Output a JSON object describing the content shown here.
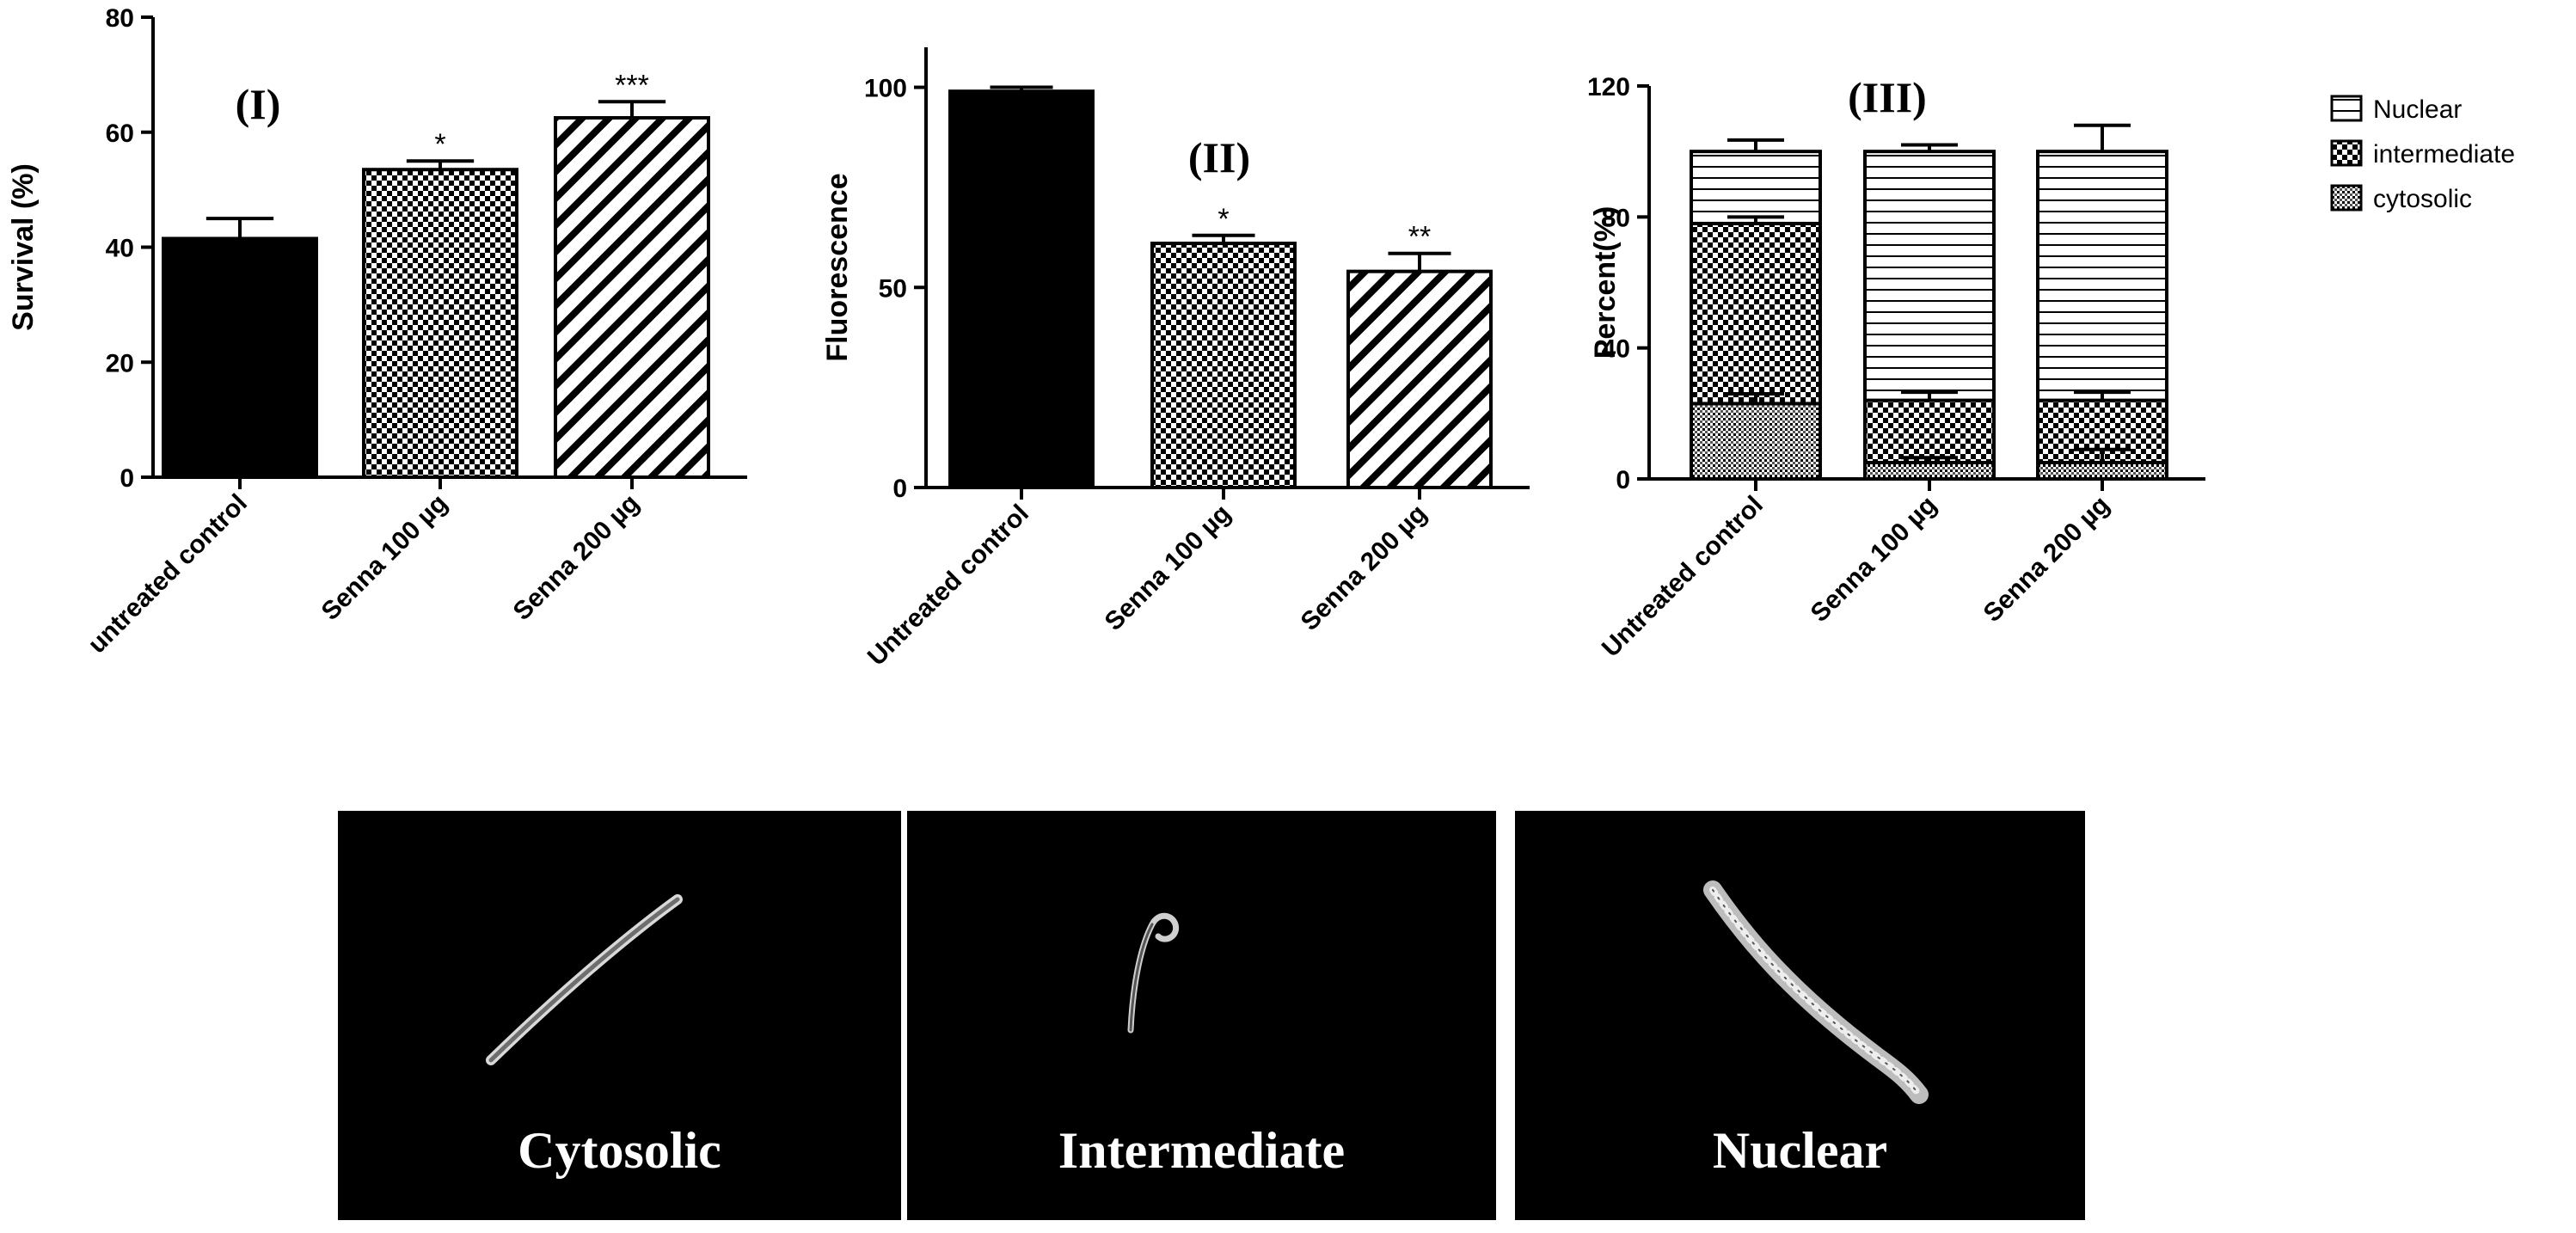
{
  "chart_data": [
    {
      "type": "bar",
      "panel_label": "(I)",
      "ylabel": "Survival (%)",
      "ylim": [
        0,
        80
      ],
      "yticks": [
        "0",
        "20",
        "40",
        "60",
        "80"
      ],
      "categories": [
        "untreated control",
        "Senna 100 µg",
        "Senna 200 µg"
      ],
      "values": [
        41.5,
        53.5,
        62.5
      ],
      "errors": [
        3.5,
        1.5,
        2.8
      ],
      "significance": [
        "",
        "*",
        "***"
      ],
      "patterns": [
        "solid",
        "checker",
        "diagonal"
      ]
    },
    {
      "type": "bar",
      "panel_label": "(II)",
      "ylabel": "Fluorescence",
      "ylim": [
        0,
        110
      ],
      "yticks": [
        "0",
        "50",
        "100"
      ],
      "categories": [
        "Untreated control",
        "Senna 100 µg",
        "Senna 200 µg"
      ],
      "values": [
        99,
        61,
        54
      ],
      "errors": [
        1,
        2,
        4.5
      ],
      "significance": [
        "",
        "*",
        "**"
      ],
      "patterns": [
        "solid",
        "checker",
        "diagonal"
      ]
    },
    {
      "type": "bar",
      "stacked": true,
      "panel_label": "(III)",
      "ylabel": "Percent(%)",
      "ylim": [
        0,
        120
      ],
      "yticks": [
        "0",
        "40",
        "80",
        "120"
      ],
      "categories": [
        "Untreated control",
        "Senna 100 µg",
        "Senna 200 µg"
      ],
      "series": [
        {
          "name": "cytosolic",
          "values": [
            23,
            5,
            5
          ],
          "errors": [
            3,
            1.5,
            4
          ],
          "pattern": "dots"
        },
        {
          "name": "intermediate",
          "values": [
            55,
            19,
            19
          ],
          "errors": [
            2,
            2.5,
            2.5
          ],
          "pattern": "checker"
        },
        {
          "name": "Nuclear",
          "values": [
            22,
            76,
            76
          ],
          "errors": [
            3.5,
            2,
            8
          ],
          "pattern": "hlines"
        }
      ],
      "legend_order": [
        "Nuclear",
        "intermediate",
        "cytosolic"
      ],
      "legend_position": "right"
    }
  ],
  "micrographs": [
    {
      "label": "Cytosolic",
      "icon": "worm-cytosolic-icon"
    },
    {
      "label": "Intermediate",
      "icon": "worm-intermediate-icon"
    },
    {
      "label": "Nuclear",
      "icon": "worm-nuclear-icon"
    }
  ]
}
